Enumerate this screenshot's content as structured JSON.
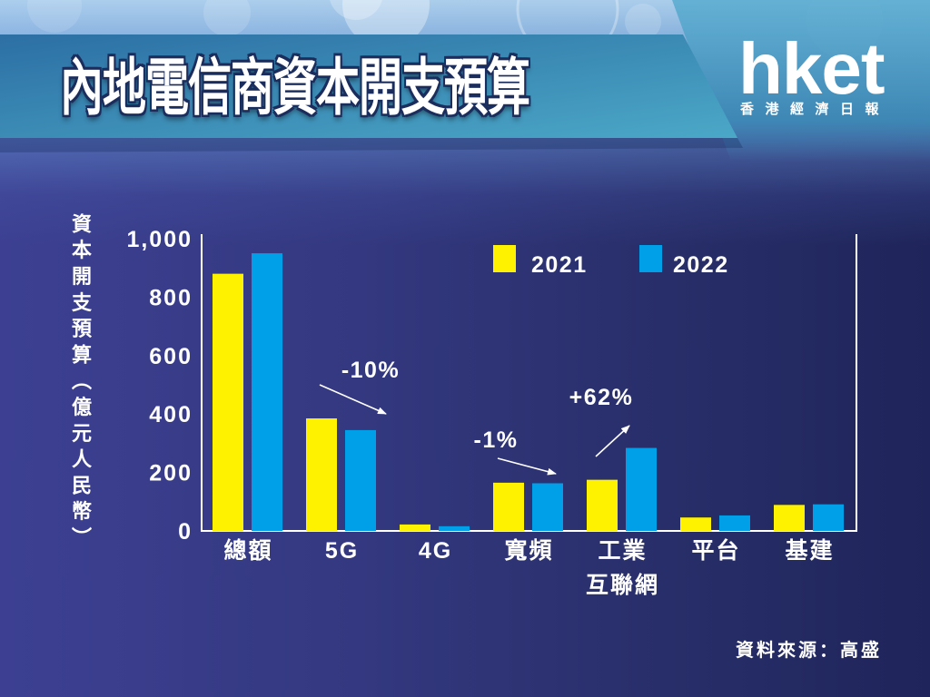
{
  "logo": {
    "wordmark": "hket",
    "subtitle": "香港經濟日報"
  },
  "source": "資料來源：高盛",
  "colors": {
    "title_band": "#3a8dbb",
    "background": "#2d3277",
    "text": "#ffffff"
  },
  "chart_data": {
    "type": "bar",
    "title": "內地電信商資本開支預算",
    "ylabel": "資本開支預算（億元人民幣）",
    "ylim": [
      0,
      1000
    ],
    "ytick_labels": [
      "0",
      "200",
      "400",
      "600",
      "800",
      "1,000"
    ],
    "categories": [
      "總額",
      "5G",
      "4G",
      "寬頻",
      "工業互聯網",
      "平台",
      "基建"
    ],
    "series": [
      {
        "name": "2021",
        "color": "#fff200",
        "values": [
          880,
          385,
          22,
          165,
          175,
          46,
          89
        ]
      },
      {
        "name": "2022",
        "color": "#00a0e9",
        "values": [
          950,
          345,
          16,
          163,
          284,
          53,
          91
        ]
      }
    ],
    "annotations": [
      {
        "text": "-10%",
        "category_index": 1
      },
      {
        "text": "-1%",
        "category_index": 3
      },
      {
        "text": "+62%",
        "category_index": 4
      }
    ],
    "legend": "top-right",
    "grid": false
  }
}
